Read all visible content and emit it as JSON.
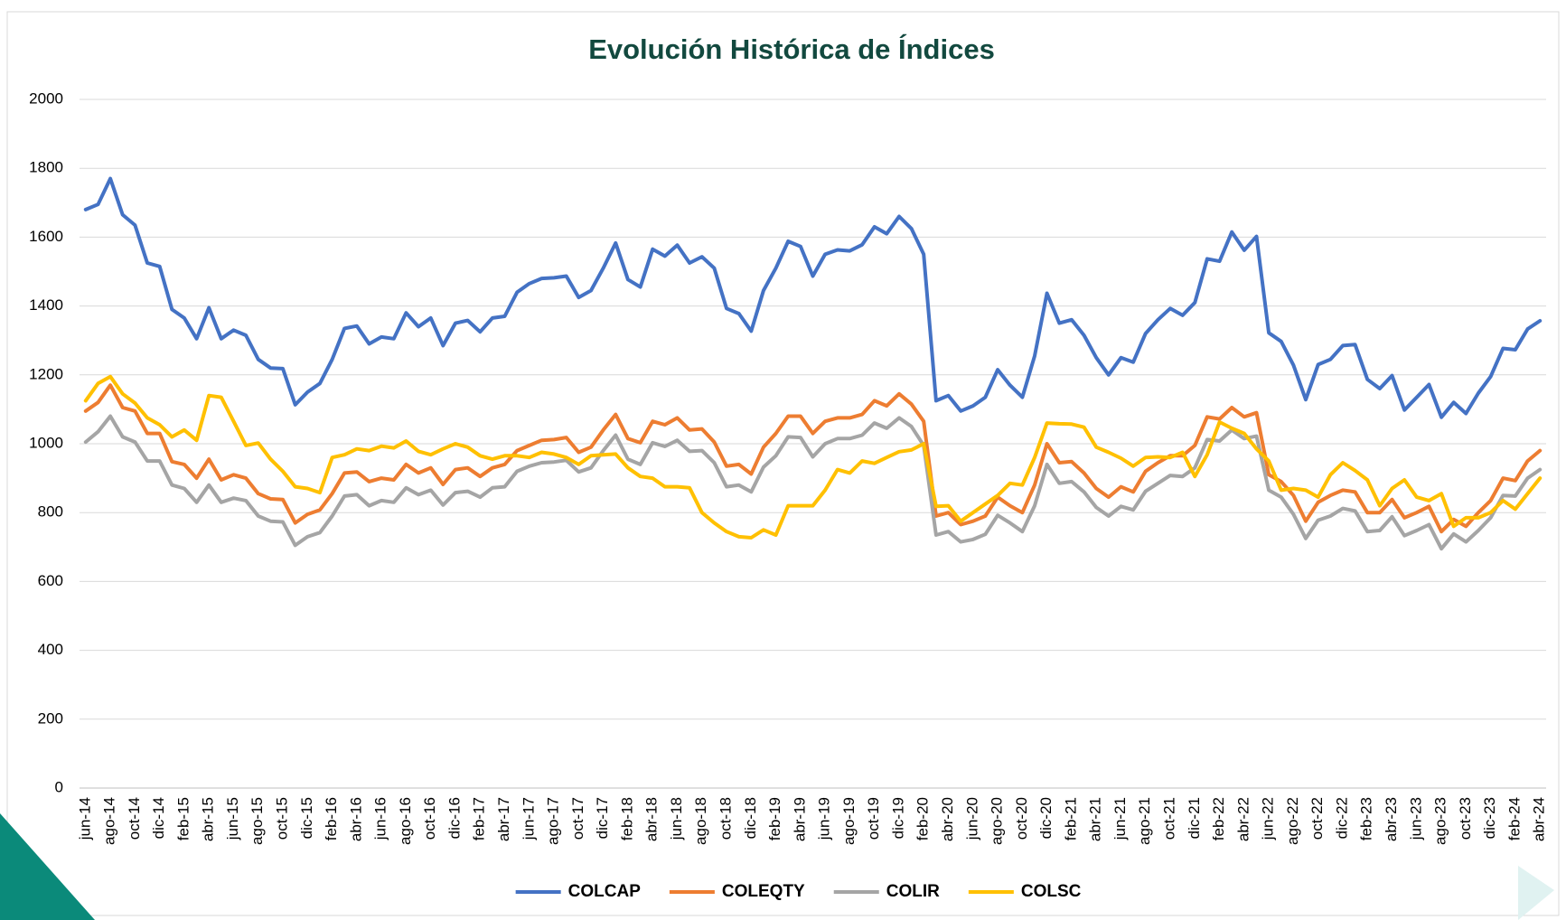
{
  "chart_data": {
    "type": "line",
    "title": "Evolución Histórica de Índices",
    "categories": [
      "jun-14",
      null,
      "ago-14",
      null,
      "oct-14",
      null,
      "dic-14",
      null,
      "feb-15",
      null,
      "abr-15",
      null,
      "jun-15",
      null,
      "ago-15",
      null,
      "oct-15",
      null,
      "dic-15",
      null,
      "feb-16",
      null,
      "abr-16",
      null,
      "jun-16",
      null,
      "ago-16",
      null,
      "oct-16",
      null,
      "dic-16",
      null,
      "feb-17",
      null,
      "abr-17",
      null,
      "jun-17",
      null,
      "ago-17",
      null,
      "oct-17",
      null,
      "dic-17",
      null,
      "feb-18",
      null,
      "abr-18",
      null,
      "jun-18",
      null,
      "ago-18",
      null,
      "oct-18",
      null,
      "dic-18",
      null,
      "feb-19",
      null,
      "abr-19",
      null,
      "jun-19",
      null,
      "ago-19",
      null,
      "oct-19",
      null,
      "dic-19",
      null,
      "feb-20",
      null,
      "abr-20",
      null,
      "jun-20",
      null,
      "ago-20",
      null,
      "oct-20",
      null,
      "dic-20",
      null,
      "feb-21",
      null,
      "abr-21",
      null,
      "jun-21",
      null,
      "ago-21",
      null,
      "oct-21",
      null,
      "dic-21",
      null,
      "feb-22",
      null,
      "abr-22",
      null,
      "jun-22",
      null,
      "ago-22",
      null,
      "oct-22",
      null,
      "dic-22",
      null,
      "feb-23",
      null,
      "abr-23",
      null,
      "jun-23",
      null,
      "ago-23",
      null,
      "oct-23",
      null,
      "dic-23",
      null,
      "feb-24",
      null,
      "abr-24"
    ],
    "series": [
      {
        "name": "COLCAP",
        "color": "#4472c4",
        "values": [
          1680,
          1695,
          1770,
          1665,
          1635,
          1525,
          1515,
          1390,
          1365,
          1305,
          1395,
          1305,
          1330,
          1315,
          1245,
          1220,
          1218,
          1113,
          1150,
          1175,
          1245,
          1335,
          1342,
          1290,
          1310,
          1305,
          1380,
          1340,
          1365,
          1285,
          1350,
          1358,
          1325,
          1365,
          1370,
          1440,
          1465,
          1480,
          1482,
          1487,
          1425,
          1445,
          1510,
          1583,
          1477,
          1455,
          1565,
          1545,
          1577,
          1525,
          1543,
          1510,
          1393,
          1378,
          1327,
          1445,
          1510,
          1588,
          1573,
          1487,
          1550,
          1563,
          1560,
          1578,
          1630,
          1610,
          1660,
          1625,
          1550,
          1125,
          1140,
          1095,
          1110,
          1135,
          1215,
          1170,
          1135,
          1255,
          1437,
          1350,
          1360,
          1315,
          1250,
          1200,
          1250,
          1237,
          1320,
          1360,
          1393,
          1373,
          1410,
          1537,
          1530,
          1615,
          1562,
          1602,
          1322,
          1297,
          1228,
          1128,
          1230,
          1245,
          1285,
          1288,
          1187,
          1160,
          1198,
          1098,
          1135,
          1172,
          1077,
          1120,
          1088,
          1147,
          1195,
          1277,
          1273,
          1333,
          1357
        ]
      },
      {
        "name": "COLEQTY",
        "color": "#ed7d31",
        "values": [
          1095,
          1120,
          1170,
          1105,
          1095,
          1030,
          1030,
          948,
          940,
          900,
          955,
          895,
          910,
          900,
          855,
          840,
          838,
          770,
          795,
          808,
          855,
          915,
          918,
          890,
          900,
          895,
          940,
          915,
          930,
          882,
          925,
          930,
          905,
          930,
          940,
          980,
          995,
          1010,
          1012,
          1018,
          975,
          990,
          1040,
          1085,
          1015,
          1003,
          1065,
          1055,
          1075,
          1040,
          1043,
          1005,
          935,
          940,
          912,
          990,
          1030,
          1080,
          1080,
          1030,
          1065,
          1075,
          1075,
          1085,
          1125,
          1110,
          1145,
          1115,
          1065,
          790,
          800,
          765,
          775,
          790,
          845,
          820,
          800,
          880,
          1000,
          945,
          948,
          915,
          870,
          845,
          875,
          860,
          920,
          945,
          965,
          965,
          995,
          1078,
          1072,
          1105,
          1078,
          1090,
          910,
          890,
          850,
          775,
          830,
          850,
          865,
          860,
          800,
          800,
          838,
          785,
          800,
          818,
          745,
          780,
          760,
          800,
          835,
          900,
          893,
          950,
          980
        ]
      },
      {
        "name": "COLIR",
        "color": "#a5a5a5",
        "values": [
          1005,
          1035,
          1080,
          1020,
          1005,
          950,
          950,
          880,
          870,
          830,
          880,
          830,
          842,
          835,
          790,
          775,
          773,
          705,
          730,
          742,
          790,
          848,
          852,
          820,
          835,
          830,
          872,
          852,
          865,
          822,
          858,
          862,
          845,
          872,
          875,
          920,
          935,
          945,
          947,
          952,
          918,
          930,
          980,
          1025,
          955,
          940,
          1003,
          992,
          1010,
          978,
          980,
          945,
          875,
          880,
          860,
          932,
          965,
          1020,
          1018,
          962,
          1000,
          1015,
          1015,
          1025,
          1060,
          1045,
          1075,
          1050,
          995,
          735,
          745,
          715,
          722,
          737,
          792,
          770,
          745,
          820,
          940,
          885,
          890,
          860,
          815,
          790,
          818,
          808,
          862,
          885,
          908,
          905,
          930,
          1012,
          1008,
          1040,
          1015,
          1022,
          865,
          845,
          795,
          725,
          778,
          790,
          812,
          805,
          745,
          748,
          788,
          733,
          748,
          765,
          695,
          738,
          715,
          748,
          785,
          850,
          848,
          900,
          925
        ]
      },
      {
        "name": "COLSC",
        "color": "#ffc000",
        "values": [
          1125,
          1175,
          1195,
          1145,
          1118,
          1075,
          1055,
          1020,
          1040,
          1010,
          1140,
          1135,
          1065,
          995,
          1002,
          955,
          920,
          875,
          870,
          858,
          960,
          968,
          985,
          980,
          993,
          988,
          1008,
          978,
          968,
          985,
          1000,
          990,
          965,
          955,
          965,
          965,
          960,
          975,
          970,
          960,
          940,
          965,
          968,
          970,
          930,
          905,
          900,
          875,
          875,
          872,
          800,
          770,
          745,
          730,
          727,
          750,
          735,
          820,
          820,
          820,
          865,
          925,
          915,
          950,
          943,
          960,
          977,
          982,
          1000,
          818,
          820,
          775,
          800,
          825,
          850,
          885,
          880,
          960,
          1060,
          1058,
          1057,
          1048,
          990,
          975,
          958,
          935,
          960,
          962,
          960,
          975,
          905,
          968,
          1063,
          1045,
          1030,
          985,
          950,
          865,
          870,
          865,
          845,
          910,
          945,
          922,
          895,
          820,
          870,
          895,
          845,
          835,
          855,
          760,
          785,
          785,
          800,
          835,
          810,
          855,
          900
        ]
      }
    ],
    "ylim": [
      0,
      2000
    ],
    "yticks": [
      0,
      200,
      400,
      600,
      800,
      1000,
      1200,
      1400,
      1600,
      1800,
      2000
    ],
    "grid": true,
    "legend": "bottom"
  }
}
